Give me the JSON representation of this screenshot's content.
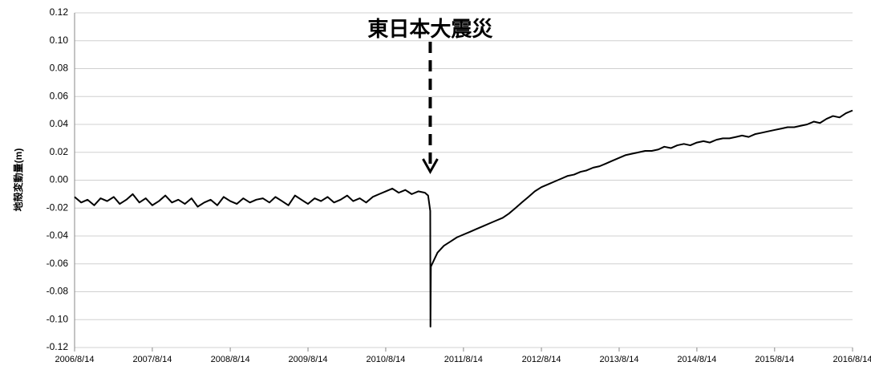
{
  "chart_data": {
    "type": "line",
    "ylabel": "地殻変動量(m)",
    "annotation": {
      "text": "東日本大震災",
      "x": "2011/3/11"
    },
    "color": "#000000",
    "grid": true,
    "xlim": [
      "2006/8/14",
      "2016/8/14"
    ],
    "xticks": [
      "2006/8/14",
      "2007/8/14",
      "2008/8/14",
      "2009/8/14",
      "2010/8/14",
      "2011/8/14",
      "2012/8/14",
      "2013/8/14",
      "2014/8/14",
      "2015/8/14",
      "2016/8/14"
    ],
    "ylim": [
      -0.12,
      0.12
    ],
    "yticks": [
      {
        "value": -0.12,
        "label": "-0.12"
      },
      {
        "value": -0.1,
        "label": "-0.10"
      },
      {
        "value": -0.08,
        "label": "-0.08"
      },
      {
        "value": -0.06,
        "label": "-0.06"
      },
      {
        "value": -0.04,
        "label": "-0.04"
      },
      {
        "value": -0.02,
        "label": "-0.02"
      },
      {
        "value": 0,
        "label": "0.00"
      },
      {
        "value": 0.02,
        "label": "0.02"
      },
      {
        "value": 0.04,
        "label": "0.04"
      },
      {
        "value": 0.06,
        "label": "0.06"
      },
      {
        "value": 0.08,
        "label": "0.08"
      },
      {
        "value": 0.1,
        "label": "0.10"
      },
      {
        "value": 0.12,
        "label": "0.12"
      }
    ],
    "x": [
      "2006/8/14",
      "2006/9/14",
      "2006/10/14",
      "2006/11/14",
      "2006/12/14",
      "2007/1/14",
      "2007/2/14",
      "2007/3/14",
      "2007/4/14",
      "2007/5/14",
      "2007/6/14",
      "2007/7/14",
      "2007/8/14",
      "2007/9/14",
      "2007/10/14",
      "2007/11/14",
      "2007/12/14",
      "2008/1/14",
      "2008/2/14",
      "2008/3/14",
      "2008/4/14",
      "2008/5/14",
      "2008/6/14",
      "2008/7/14",
      "2008/8/14",
      "2008/9/14",
      "2008/10/14",
      "2008/11/14",
      "2008/12/14",
      "2009/1/14",
      "2009/2/14",
      "2009/3/14",
      "2009/4/14",
      "2009/5/14",
      "2009/6/14",
      "2009/7/14",
      "2009/8/14",
      "2009/9/14",
      "2009/10/14",
      "2009/11/14",
      "2009/12/14",
      "2010/1/14",
      "2010/2/14",
      "2010/3/14",
      "2010/4/14",
      "2010/5/14",
      "2010/6/14",
      "2010/7/14",
      "2010/8/14",
      "2010/9/14",
      "2010/10/14",
      "2010/11/14",
      "2010/12/14",
      "2011/1/14",
      "2011/2/14",
      "2011/3/1",
      "2011/3/11",
      "2011/3/12",
      "2011/3/14",
      "2011/4/14",
      "2011/5/14",
      "2011/6/14",
      "2011/7/14",
      "2011/8/14",
      "2011/9/14",
      "2011/10/14",
      "2011/11/14",
      "2011/12/14",
      "2012/1/14",
      "2012/2/14",
      "2012/3/14",
      "2012/4/14",
      "2012/5/14",
      "2012/6/14",
      "2012/7/14",
      "2012/8/14",
      "2012/9/14",
      "2012/10/14",
      "2012/11/14",
      "2012/12/14",
      "2013/1/14",
      "2013/2/14",
      "2013/3/14",
      "2013/4/14",
      "2013/5/14",
      "2013/6/14",
      "2013/7/14",
      "2013/8/14",
      "2013/9/14",
      "2013/10/14",
      "2013/11/14",
      "2013/12/14",
      "2014/1/14",
      "2014/2/14",
      "2014/3/14",
      "2014/4/14",
      "2014/5/14",
      "2014/6/14",
      "2014/7/14",
      "2014/8/14",
      "2014/9/14",
      "2014/10/14",
      "2014/11/14",
      "2014/12/14",
      "2015/1/14",
      "2015/2/14",
      "2015/3/14",
      "2015/4/14",
      "2015/5/14",
      "2015/6/14",
      "2015/7/14",
      "2015/8/14",
      "2015/9/14",
      "2015/10/14",
      "2015/11/14",
      "2015/12/14",
      "2016/1/14",
      "2016/2/14",
      "2016/3/14",
      "2016/4/14",
      "2016/5/14",
      "2016/6/14",
      "2016/7/14",
      "2016/8/14"
    ],
    "values": [
      -0.012,
      -0.016,
      -0.014,
      -0.018,
      -0.013,
      -0.015,
      -0.012,
      -0.017,
      -0.014,
      -0.01,
      -0.016,
      -0.013,
      -0.018,
      -0.015,
      -0.011,
      -0.016,
      -0.014,
      -0.017,
      -0.013,
      -0.019,
      -0.016,
      -0.014,
      -0.018,
      -0.012,
      -0.015,
      -0.017,
      -0.013,
      -0.016,
      -0.014,
      -0.013,
      -0.016,
      -0.012,
      -0.015,
      -0.018,
      -0.011,
      -0.014,
      -0.017,
      -0.013,
      -0.015,
      -0.012,
      -0.016,
      -0.014,
      -0.011,
      -0.015,
      -0.013,
      -0.016,
      -0.012,
      -0.01,
      -0.008,
      -0.006,
      -0.009,
      -0.007,
      -0.01,
      -0.008,
      -0.009,
      -0.011,
      -0.022,
      -0.105,
      -0.062,
      -0.052,
      -0.047,
      -0.044,
      -0.041,
      -0.039,
      -0.037,
      -0.035,
      -0.033,
      -0.031,
      -0.029,
      -0.027,
      -0.024,
      -0.02,
      -0.016,
      -0.012,
      -0.008,
      -0.005,
      -0.003,
      -0.001,
      0.001,
      0.003,
      0.004,
      0.006,
      0.007,
      0.009,
      0.01,
      0.012,
      0.014,
      0.016,
      0.018,
      0.019,
      0.02,
      0.021,
      0.021,
      0.022,
      0.024,
      0.023,
      0.025,
      0.026,
      0.025,
      0.027,
      0.028,
      0.027,
      0.029,
      0.03,
      0.03,
      0.031,
      0.032,
      0.031,
      0.033,
      0.034,
      0.035,
      0.036,
      0.037,
      0.038,
      0.038,
      0.039,
      0.04,
      0.042,
      0.041,
      0.044,
      0.046,
      0.045,
      0.048,
      0.05
    ]
  }
}
